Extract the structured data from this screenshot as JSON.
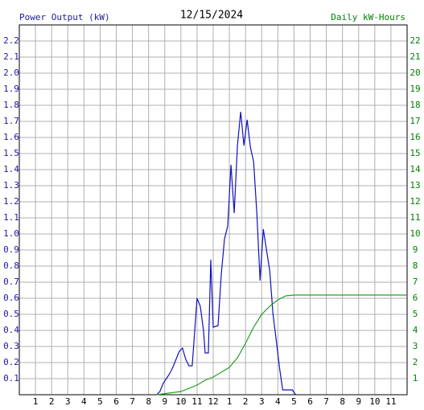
{
  "chart_data": {
    "type": "line",
    "title": "12/15/2024",
    "ylabel": "Power Output (kW)",
    "y2label": "Daily kW-Hours",
    "ylabel_color": "#1a1aa0",
    "y2label_color": "#008000",
    "xlim": [
      0,
      24
    ],
    "xticks": [
      1,
      2,
      3,
      4,
      5,
      6,
      7,
      8,
      9,
      10,
      11,
      12,
      {
        "value": 13,
        "label": "1"
      },
      {
        "value": 14,
        "label": "2"
      },
      {
        "value": 15,
        "label": "3"
      },
      {
        "value": 16,
        "label": "4"
      },
      {
        "value": 17,
        "label": "5"
      },
      {
        "value": 18,
        "label": "6"
      },
      {
        "value": 19,
        "label": "7"
      },
      {
        "value": 20,
        "label": "8"
      },
      {
        "value": 21,
        "label": "9"
      },
      {
        "value": 22,
        "label": "10"
      },
      {
        "value": 23,
        "label": "11"
      }
    ],
    "ylim": [
      0,
      2.3
    ],
    "yticks": [
      0.1,
      0.2,
      0.3,
      0.4,
      0.5,
      0.6,
      0.7,
      0.8,
      0.9,
      {
        "value": 1,
        "label": "1.0"
      },
      1.1,
      1.2,
      1.3,
      1.4,
      1.5,
      1.6,
      1.7,
      1.8,
      1.9,
      {
        "value": 2,
        "label": "2.0"
      },
      2.1,
      2.2
    ],
    "y2lim": [
      0,
      23
    ],
    "y2ticks": [
      1,
      2,
      3,
      4,
      5,
      6,
      7,
      8,
      9,
      10,
      11,
      12,
      13,
      14,
      15,
      16,
      17,
      18,
      19,
      20,
      21,
      22
    ],
    "grid": true,
    "series": [
      {
        "color": "#1010c0",
        "axis": "y",
        "x": [
          8.5,
          8.7,
          8.9,
          9.1,
          9.3,
          9.5,
          9.7,
          9.9,
          10.1,
          10.3,
          10.5,
          10.7,
          10.8,
          11.0,
          11.2,
          11.4,
          11.5,
          11.7,
          11.85,
          12.0,
          12.3,
          12.5,
          12.7,
          12.9,
          13.1,
          13.3,
          13.5,
          13.7,
          13.9,
          14.1,
          14.3,
          14.5,
          14.7,
          14.9,
          15.1,
          15.3,
          15.5,
          15.7,
          15.9,
          16.1,
          16.3,
          16.9,
          17.1
        ],
        "values": [
          0,
          0.02,
          0.07,
          0.1,
          0.13,
          0.17,
          0.22,
          0.27,
          0.29,
          0.22,
          0.18,
          0.18,
          0.32,
          0.6,
          0.55,
          0.4,
          0.26,
          0.26,
          0.84,
          0.42,
          0.43,
          0.75,
          0.97,
          1.05,
          1.43,
          1.13,
          1.55,
          1.76,
          1.55,
          1.71,
          1.54,
          1.45,
          1.13,
          0.71,
          1.03,
          0.9,
          0.77,
          0.5,
          0.34,
          0.17,
          0.03,
          0.03,
          0
        ]
      },
      {
        "color": "#20a020",
        "axis": "y2",
        "x": [
          8.5,
          10,
          11,
          11.5,
          12,
          12.5,
          13,
          13.5,
          14,
          14.5,
          15,
          15.5,
          16,
          16.5,
          17,
          24
        ],
        "values": [
          0,
          0.2,
          0.6,
          0.9,
          1.1,
          1.4,
          1.7,
          2.3,
          3.2,
          4.2,
          5.0,
          5.5,
          5.9,
          6.15,
          6.2,
          6.2
        ]
      }
    ]
  }
}
